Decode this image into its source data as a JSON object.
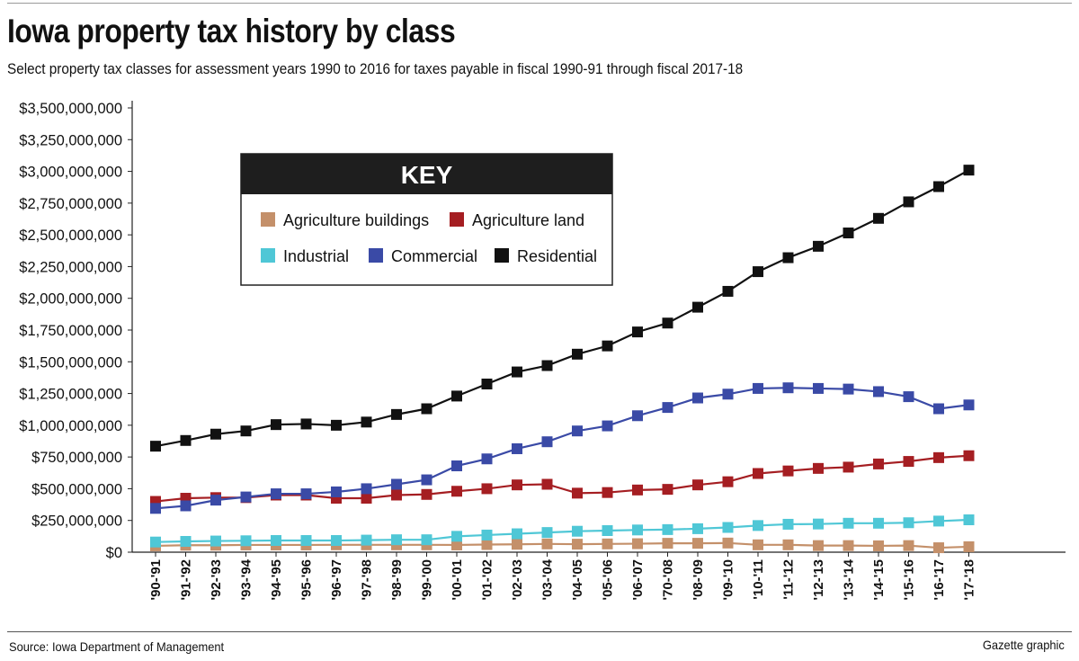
{
  "title": "Iowa property tax history by class",
  "subtitle": "Select property tax classes for assessment years 1990 to 2016 for taxes payable in fiscal 1990-91 through fiscal 2017-18",
  "source": "Source: Iowa Department of Management",
  "credit": "Gazette graphic",
  "chart_data": {
    "type": "line",
    "title": "Iowa property tax history by class",
    "ylim": [
      0,
      3500000000
    ],
    "grid": false,
    "legend_position": "top-left",
    "legend_title": "KEY",
    "y_tick_labels": [
      "$0",
      "$250,000,000",
      "$500,000,000",
      "$750,000,000",
      "$1,000,000,000",
      "$1,250,000,000",
      "$1,500,000,000",
      "$1,750,000,000",
      "$2,000,000,000",
      "$2,250,000,000",
      "$2,500,000,000",
      "$2,750,000,000",
      "$3,000,000,000",
      "$3,250,000,000",
      "$3,500,000,000"
    ],
    "categories": [
      "'90-'91",
      "'91-'92",
      "'92-'93",
      "'93-'94",
      "'94-'95",
      "'95-'96",
      "'96-'97",
      "'97-'98",
      "'98-'99",
      "'99-'00",
      "'00-'01",
      "'01-'02",
      "'02-'03",
      "'03-'04",
      "'04-'05",
      "'05-'06",
      "'06-'07",
      "'70-'08",
      "'08-'09",
      "'09-'10",
      "'10-'11",
      "'11-'12",
      "'12-'13",
      "'13-'14",
      "'14-'15",
      "'15-'16",
      "'16-'17",
      "'17-'18"
    ],
    "series": [
      {
        "name": "Agriculture buildings",
        "color": "#c4906a",
        "values": [
          50000000,
          55000000,
          55000000,
          57000000,
          57000000,
          57000000,
          58000000,
          58000000,
          58000000,
          58000000,
          57000000,
          60000000,
          62000000,
          65000000,
          63000000,
          65000000,
          67000000,
          70000000,
          70000000,
          72000000,
          58000000,
          58000000,
          52000000,
          52000000,
          50000000,
          52000000,
          35000000,
          43000000
        ]
      },
      {
        "name": "Agriculture land",
        "color": "#a51e22",
        "values": [
          400000000,
          425000000,
          430000000,
          430000000,
          450000000,
          450000000,
          425000000,
          425000000,
          450000000,
          455000000,
          480000000,
          500000000,
          530000000,
          535000000,
          465000000,
          470000000,
          490000000,
          495000000,
          530000000,
          555000000,
          620000000,
          640000000,
          660000000,
          670000000,
          695000000,
          715000000,
          745000000,
          760000000
        ]
      },
      {
        "name": "Industrial",
        "color": "#4fc7d6",
        "values": [
          80000000,
          85000000,
          88000000,
          90000000,
          92000000,
          92000000,
          92000000,
          95000000,
          98000000,
          98000000,
          125000000,
          135000000,
          145000000,
          155000000,
          165000000,
          170000000,
          175000000,
          178000000,
          185000000,
          195000000,
          210000000,
          220000000,
          222000000,
          228000000,
          228000000,
          232000000,
          245000000,
          255000000
        ]
      },
      {
        "name": "Commercial",
        "color": "#3a4aa6",
        "values": [
          345000000,
          365000000,
          410000000,
          435000000,
          460000000,
          460000000,
          475000000,
          500000000,
          535000000,
          570000000,
          680000000,
          735000000,
          815000000,
          870000000,
          955000000,
          995000000,
          1075000000,
          1140000000,
          1215000000,
          1245000000,
          1290000000,
          1295000000,
          1290000000,
          1285000000,
          1265000000,
          1225000000,
          1130000000,
          1160000000
        ]
      },
      {
        "name": "Residential",
        "color": "#111111",
        "values": [
          835000000,
          880000000,
          930000000,
          955000000,
          1005000000,
          1010000000,
          1000000000,
          1025000000,
          1085000000,
          1130000000,
          1230000000,
          1325000000,
          1420000000,
          1470000000,
          1560000000,
          1625000000,
          1735000000,
          1805000000,
          1930000000,
          2055000000,
          2210000000,
          2320000000,
          2410000000,
          2515000000,
          2630000000,
          2760000000,
          2880000000,
          3010000000
        ]
      }
    ]
  }
}
